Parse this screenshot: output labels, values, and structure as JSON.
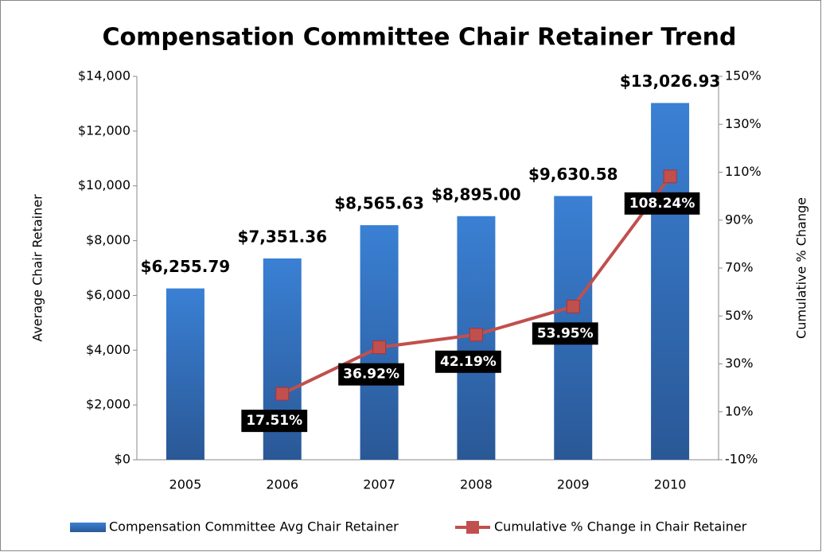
{
  "chart_data": {
    "type": "bar+line",
    "title": "Compensation Committee Chair Retainer Trend",
    "y_label": "Average Chair Retainer",
    "y2_label": "Cumulative % Change",
    "categories": [
      "2005",
      "2006",
      "2007",
      "2008",
      "2009",
      "2010"
    ],
    "series": [
      {
        "name": "Compensation Committee Avg Chair Retainer",
        "type": "bar",
        "color": "#3a7dd0",
        "values": [
          6255.79,
          7351.36,
          8565.63,
          8895.0,
          9630.58,
          13026.93
        ],
        "value_labels": [
          "$6,255.79",
          "$7,351.36",
          "$8,565.63",
          "$8,895.00",
          "$9,630.58",
          "$13,026.93"
        ]
      },
      {
        "name": "Cumulative % Change in Chair Retainer",
        "type": "line",
        "axis": "y2",
        "color": "#c0504d",
        "values": [
          null,
          17.51,
          36.92,
          42.19,
          53.95,
          108.24
        ],
        "value_labels": [
          null,
          "17.51%",
          "36.92%",
          "42.19%",
          "53.95%",
          "108.24%"
        ]
      }
    ],
    "ylim": [
      0,
      14000
    ],
    "yticks": [
      {
        "value": 0,
        "label": "$0"
      },
      {
        "value": 2000,
        "label": "$2,000"
      },
      {
        "value": 4000,
        "label": "$4,000"
      },
      {
        "value": 6000,
        "label": "$6,000"
      },
      {
        "value": 8000,
        "label": "$8,000"
      },
      {
        "value": 10000,
        "label": "$10,000"
      },
      {
        "value": 12000,
        "label": "$12,000"
      },
      {
        "value": 14000,
        "label": "$14,000"
      }
    ],
    "y2lim": [
      -10,
      150
    ],
    "y2ticks": [
      {
        "value": -10,
        "label": "-10%"
      },
      {
        "value": 10,
        "label": "10%"
      },
      {
        "value": 30,
        "label": "30%"
      },
      {
        "value": 50,
        "label": "50%"
      },
      {
        "value": 70,
        "label": "70%"
      },
      {
        "value": 90,
        "label": "90%"
      },
      {
        "value": 110,
        "label": "110%"
      },
      {
        "value": 130,
        "label": "130%"
      },
      {
        "value": 150,
        "label": "150%"
      }
    ],
    "grid": false,
    "legend": "bottom"
  }
}
